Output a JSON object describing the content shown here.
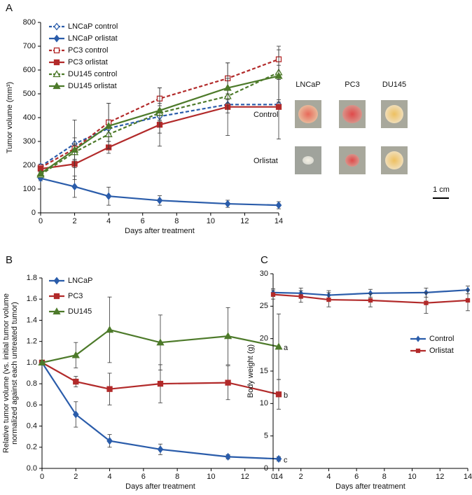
{
  "chart_data": [
    {
      "type": "line",
      "panel": "A",
      "ylabel": "Tumor volume (mm³)",
      "xlabel": "Days after treatment",
      "x": [
        0,
        2,
        4,
        7,
        11,
        14
      ],
      "xlim": [
        0,
        14
      ],
      "xticks": [
        0,
        2,
        4,
        6,
        8,
        10,
        12,
        14
      ],
      "ylim": [
        0,
        800
      ],
      "yticks": [
        0,
        100,
        200,
        300,
        400,
        500,
        600,
        700,
        800
      ],
      "legend": "upper left",
      "series": [
        {
          "name": "LNCaP control",
          "color": "#2a5caa",
          "marker": "diamond",
          "open": true,
          "dash": true,
          "values": [
            195,
            290,
            355,
            405,
            455,
            455
          ],
          "errors": [
            10,
            25,
            20,
            20,
            20,
            20
          ]
        },
        {
          "name": "LNCaP orlistat",
          "color": "#2a5caa",
          "marker": "diamond",
          "open": false,
          "dash": false,
          "values": [
            145,
            110,
            70,
            52,
            38,
            32
          ],
          "errors": [
            10,
            45,
            38,
            20,
            15,
            15
          ]
        },
        {
          "name": "PC3 control",
          "color": "#b22a2a",
          "marker": "square",
          "open": true,
          "dash": true,
          "values": [
            190,
            270,
            380,
            480,
            565,
            645
          ],
          "errors": [
            10,
            20,
            80,
            45,
            65,
            55
          ]
        },
        {
          "name": "PC3 orlistat",
          "color": "#b22a2a",
          "marker": "square",
          "open": false,
          "dash": false,
          "values": [
            185,
            205,
            275,
            370,
            445,
            445
          ],
          "errors": [
            10,
            15,
            25,
            90,
            120,
            135
          ]
        },
        {
          "name": "DU145 control",
          "color": "#4d7a2a",
          "marker": "triangle",
          "open": true,
          "dash": true,
          "values": [
            160,
            255,
            330,
            420,
            490,
            590
          ],
          "errors": [
            10,
            30,
            30,
            30,
            30,
            30
          ]
        },
        {
          "name": "DU145 orlistat",
          "color": "#4d7a2a",
          "marker": "triangle",
          "open": false,
          "dash": false,
          "values": [
            165,
            265,
            365,
            430,
            525,
            575
          ],
          "errors": [
            10,
            125,
            95,
            95,
            105,
            110
          ]
        }
      ]
    },
    {
      "type": "line",
      "panel": "B",
      "ylabel": [
        "Relative tumor volume (vs. initial tumor volume",
        "normalized against each untreated tumor)"
      ],
      "xlabel": "Days after treatment",
      "x": [
        0,
        2,
        4,
        7,
        11,
        14
      ],
      "xlim": [
        0,
        14
      ],
      "xticks": [
        0,
        2,
        4,
        6,
        8,
        10,
        12,
        14
      ],
      "ylim": [
        0,
        1.8
      ],
      "yticks": [
        {
          "value": 0,
          "label": "0.0"
        },
        0.2,
        0.4,
        0.6,
        0.8,
        {
          "value": 1,
          "label": "1.0"
        },
        1.2,
        1.4,
        1.6,
        1.8
      ],
      "legend": "upper left",
      "series": [
        {
          "name": "LNCaP",
          "color": "#2a5caa",
          "marker": "diamond",
          "open": false,
          "dash": false,
          "end_label": "c",
          "values": [
            1.0,
            0.51,
            0.26,
            0.18,
            0.11,
            0.09
          ],
          "errors": [
            0.02,
            0.12,
            0.06,
            0.05,
            0.02,
            0.02
          ]
        },
        {
          "name": "PC3",
          "color": "#b22a2a",
          "marker": "square",
          "open": false,
          "dash": false,
          "end_label": "b",
          "values": [
            1.0,
            0.82,
            0.75,
            0.8,
            0.81,
            0.7
          ],
          "errors": [
            0.02,
            0.05,
            0.15,
            0.18,
            0.16,
            0.14
          ]
        },
        {
          "name": "DU145",
          "color": "#4d7a2a",
          "marker": "triangle",
          "open": false,
          "dash": false,
          "end_label": "a",
          "values": [
            1.0,
            1.07,
            1.31,
            1.19,
            1.25,
            1.15
          ],
          "errors": [
            0.02,
            0.12,
            0.31,
            0.26,
            0.27,
            0.31
          ]
        }
      ]
    },
    {
      "type": "line",
      "panel": "C",
      "ylabel": "Body weight (g)",
      "xlabel": "Days after treatment",
      "x": [
        0,
        2,
        4,
        7,
        11,
        14
      ],
      "xlim": [
        0,
        14
      ],
      "xticks": [
        0,
        2,
        4,
        6,
        8,
        10,
        12,
        14
      ],
      "ylim": [
        0,
        30
      ],
      "yticks": [
        0,
        5,
        10,
        15,
        20,
        25,
        30
      ],
      "legend": "center right",
      "series": [
        {
          "name": "Control",
          "color": "#2a5caa",
          "marker": "diamond",
          "open": false,
          "dash": false,
          "values": [
            27.1,
            27.0,
            26.7,
            27.0,
            27.1,
            27.5
          ],
          "errors": [
            0.6,
            0.8,
            0.7,
            0.6,
            0.7,
            0.6
          ]
        },
        {
          "name": "Orlistat",
          "color": "#b22a2a",
          "marker": "square",
          "open": false,
          "dash": false,
          "values": [
            26.8,
            26.5,
            26.0,
            25.9,
            25.5,
            25.9
          ],
          "errors": [
            0.7,
            0.9,
            1.1,
            1.0,
            1.6,
            1.6
          ]
        }
      ]
    }
  ],
  "photo_panel": {
    "columns": [
      "LNCaP",
      "PC3",
      "DU145"
    ],
    "rows": [
      "Control",
      "Orlistat"
    ],
    "scale": "1 cm"
  }
}
